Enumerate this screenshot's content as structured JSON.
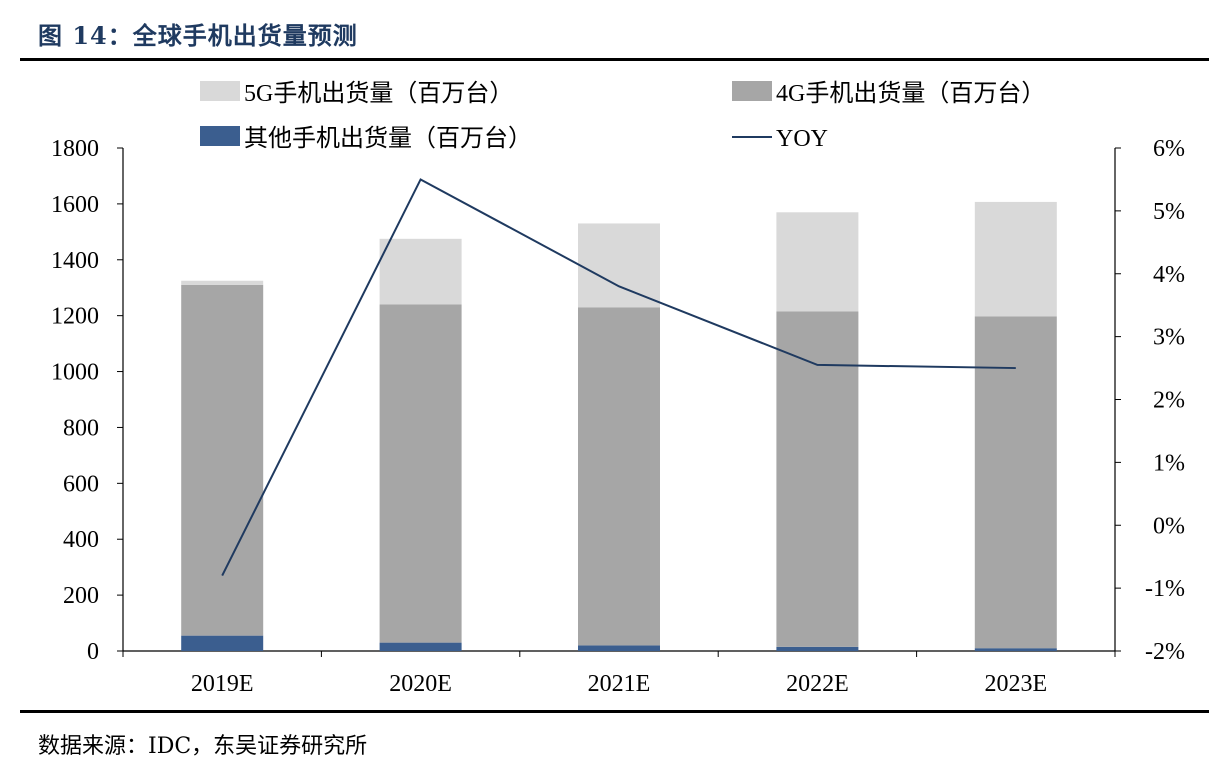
{
  "figure": {
    "title": "图 14：全球手机出货量预测",
    "source": "数据来源：IDC，东吴证券研究所"
  },
  "chart_data": {
    "type": "bar",
    "stacked": true,
    "categories": [
      "2019E",
      "2020E",
      "2021E",
      "2022E",
      "2023E"
    ],
    "series": [
      {
        "name": "其他手机出货量（百万台）",
        "color": "#3b5e8f",
        "values": [
          55,
          30,
          20,
          15,
          10
        ]
      },
      {
        "name": "4G手机出货量（百万台）",
        "color": "#a6a6a6",
        "values": [
          1255,
          1210,
          1210,
          1200,
          1187
        ]
      },
      {
        "name": "5G手机出货量（百万台）",
        "color": "#d9d9d9",
        "values": [
          15,
          235,
          300,
          355,
          410
        ]
      }
    ],
    "line": {
      "name": "YOY",
      "axis": "right",
      "color": "#1f3a60",
      "values": [
        -0.8,
        5.5,
        3.8,
        2.55,
        2.5
      ]
    },
    "ylim": [
      0,
      1800
    ],
    "yticks": [
      "0",
      "200",
      "400",
      "600",
      "800",
      "1000",
      "1200",
      "1400",
      "1600",
      "1800"
    ],
    "y2lim": [
      -2,
      6
    ],
    "y2ticks": [
      "-2%",
      "-1%",
      "0%",
      "1%",
      "2%",
      "3%",
      "4%",
      "5%",
      "6%"
    ],
    "legend": {
      "position": "top",
      "items": [
        {
          "label": "5G手机出货量（百万台）",
          "color": "#d9d9d9",
          "kind": "box"
        },
        {
          "label": "4G手机出货量（百万台）",
          "color": "#a6a6a6",
          "kind": "box"
        },
        {
          "label": "其他手机出货量（百万台）",
          "color": "#3b5e8f",
          "kind": "box"
        },
        {
          "label": "YOY",
          "color": "#1f3a60",
          "kind": "line"
        }
      ]
    },
    "grid": false
  }
}
